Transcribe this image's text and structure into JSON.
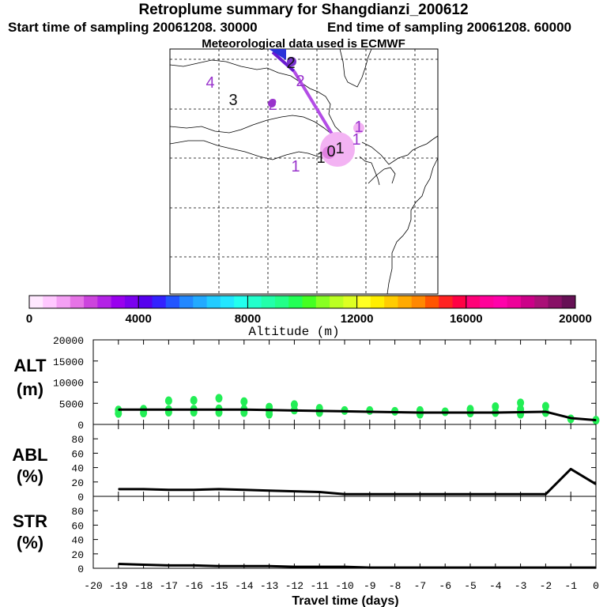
{
  "header": {
    "title": "Retroplume summary for Shangdianzi_200612",
    "start": "Start time of sampling 20061208. 30000",
    "end": "End time of sampling 20061208. 60000",
    "met": "Meteorological data used is ECMWF"
  },
  "map": {
    "labels": [
      {
        "text": "4",
        "color": "#9933cc"
      },
      {
        "text": "3",
        "color": "#111111"
      },
      {
        "text": "2",
        "color": "#9933cc"
      },
      {
        "text": "2",
        "color": "#111111"
      },
      {
        "text": "2",
        "color": "#9933cc"
      },
      {
        "text": "1",
        "color": "#9933cc"
      },
      {
        "text": "1",
        "color": "#9933cc"
      },
      {
        "text": "1",
        "color": "#9933cc"
      },
      {
        "text": "1",
        "color": "#111111"
      },
      {
        "text": "0",
        "color": "#111111"
      },
      {
        "text": "1",
        "color": "#111111"
      }
    ]
  },
  "colorbar": {
    "ticks": [
      "0",
      "4000",
      "8000",
      "12000",
      "16000",
      "20000"
    ],
    "label": "Altitude (m)",
    "colors": [
      "#ffe8ff",
      "#ffc8ff",
      "#f4a0f4",
      "#e673e6",
      "#cc44dd",
      "#b322e6",
      "#9900ee",
      "#7a00ee",
      "#5500ee",
      "#3322ff",
      "#2255ff",
      "#2288ff",
      "#22aaff",
      "#22ccff",
      "#22e6ff",
      "#22ffee",
      "#22ffcc",
      "#22ffaa",
      "#22ff88",
      "#22ff55",
      "#44ff22",
      "#88ff22",
      "#bbff22",
      "#ddff22",
      "#ffff22",
      "#ffee00",
      "#ffcc00",
      "#ffaa00",
      "#ff8800",
      "#ff5500",
      "#ff2222",
      "#ff0044",
      "#ff0077",
      "#ff0099",
      "#ff00aa",
      "#ee0099",
      "#cc0088",
      "#aa1177",
      "#881166",
      "#661155"
    ]
  },
  "chart_data": {
    "type": "line",
    "xlabel": "Travel time (days)",
    "x": [
      -19,
      -18,
      -17,
      -16,
      -15,
      -14,
      -13,
      -12,
      -11,
      -10,
      -9,
      -8,
      -7,
      -6,
      -5,
      -4,
      -3,
      -2,
      -1,
      0
    ],
    "xlim": [
      -20,
      0
    ],
    "xticks": [
      "-20",
      "-19",
      "-18",
      "-17",
      "-16",
      "-15",
      "-14",
      "-13",
      "-12",
      "-11",
      "-10",
      "-9",
      "-8",
      "-7",
      "-6",
      "-5",
      "-4",
      "-3",
      "-2",
      "-1",
      "0"
    ],
    "panels": [
      {
        "ylabel_line1": "ALT",
        "ylabel_line2": "(m)",
        "ylim": [
          0,
          20000
        ],
        "yticks": [
          "0",
          "5000",
          "10000",
          "15000",
          "20000"
        ],
        "series": [
          {
            "name": "mean altitude",
            "values": [
              3500,
              3500,
              3500,
              3500,
              3500,
              3500,
              3400,
              3300,
              3200,
              3100,
              3000,
              2900,
              2800,
              2800,
              2800,
              2800,
              2900,
              3000,
              1500,
              1000
            ]
          }
        ],
        "scatter": {
          "name": "plume altitude",
          "color": "#22ee55",
          "points": [
            [
              -19,
              3400
            ],
            [
              -19,
              2600
            ],
            [
              -18,
              3600
            ],
            [
              -18,
              2700
            ],
            [
              -17,
              5600
            ],
            [
              -17,
              3500
            ],
            [
              -17,
              2900
            ],
            [
              -16,
              5700
            ],
            [
              -16,
              3600
            ],
            [
              -16,
              2900
            ],
            [
              -15,
              6200
            ],
            [
              -15,
              3700
            ],
            [
              -15,
              2800
            ],
            [
              -14,
              5400
            ],
            [
              -14,
              3600
            ],
            [
              -14,
              2800
            ],
            [
              -13,
              4100
            ],
            [
              -13,
              3200
            ],
            [
              -13,
              2400
            ],
            [
              -12,
              4700
            ],
            [
              -12,
              3400
            ],
            [
              -11,
              3800
            ],
            [
              -11,
              2800
            ],
            [
              -10,
              3300
            ],
            [
              -9,
              3300
            ],
            [
              -8,
              3100
            ],
            [
              -7,
              3300
            ],
            [
              -7,
              2400
            ],
            [
              -6,
              3000
            ],
            [
              -5,
              3600
            ],
            [
              -5,
              2700
            ],
            [
              -4,
              4200
            ],
            [
              -4,
              2800
            ],
            [
              -3,
              5100
            ],
            [
              -3,
              3600
            ],
            [
              -3,
              2400
            ],
            [
              -2,
              4300
            ],
            [
              -2,
              2800
            ],
            [
              -1,
              1300
            ],
            [
              0,
              1000
            ]
          ]
        }
      },
      {
        "ylabel_line1": "ABL",
        "ylabel_line2": "(%)",
        "ylim": [
          0,
          100
        ],
        "yticks": [
          "0",
          "20",
          "40",
          "60",
          "80"
        ],
        "series": [
          {
            "name": "ABL fraction",
            "values": [
              10,
              10,
              9,
              9,
              10,
              9,
              8,
              7,
              6,
              3,
              3,
              3,
              3,
              3,
              3,
              3,
              3,
              3,
              38,
              17
            ]
          }
        ]
      },
      {
        "ylabel_line1": "STR",
        "ylabel_line2": "(%)",
        "ylim": [
          0,
          100
        ],
        "yticks": [
          "0",
          "20",
          "40",
          "60",
          "80"
        ],
        "series": [
          {
            "name": "stratospheric fraction",
            "values": [
              6,
              5,
              4,
              4,
              3,
              3,
              3,
              2,
              2,
              2,
              1,
              1,
              1,
              1,
              1,
              1,
              1,
              1,
              1,
              1
            ]
          }
        ]
      }
    ]
  }
}
